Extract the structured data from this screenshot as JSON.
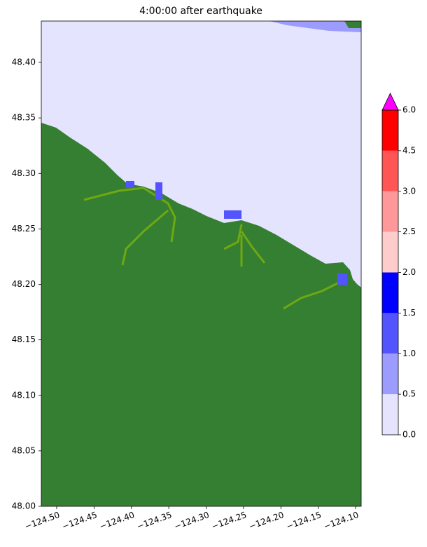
{
  "chart_data": {
    "type": "map",
    "title": "4:00:00 after earthquake",
    "xlim": [
      -124.5206,
      -124.0925
    ],
    "ylim": [
      48.0,
      48.4373
    ],
    "xticks": [
      {
        "value": -124.5,
        "label": "−124.50"
      },
      {
        "value": -124.45,
        "label": "−124.45"
      },
      {
        "value": -124.4,
        "label": "−124.40"
      },
      {
        "value": -124.35,
        "label": "−124.35"
      },
      {
        "value": -124.3,
        "label": "−124.30"
      },
      {
        "value": -124.25,
        "label": "−124.25"
      },
      {
        "value": -124.2,
        "label": "−124.20"
      },
      {
        "value": -124.15,
        "label": "−124.15"
      },
      {
        "value": -124.1,
        "label": "−124.10"
      }
    ],
    "yticks": [
      {
        "value": 48.0,
        "label": "48.00"
      },
      48.05,
      {
        "value": 48.1,
        "label": "48.10"
      },
      48.15,
      {
        "value": 48.2,
        "label": "48.20"
      },
      48.25,
      {
        "value": 48.3,
        "label": "48.30"
      },
      48.35,
      {
        "value": 48.4,
        "label": "48.40"
      }
    ],
    "colorbar": {
      "levels": [
        {
          "value": 0,
          "label": "0.0"
        },
        0.5,
        {
          "value": 1,
          "label": "1.0"
        },
        1.5,
        {
          "value": 2,
          "label": "2.0"
        },
        2.5,
        {
          "value": 3,
          "label": "3.0"
        },
        4.5,
        {
          "value": 6,
          "label": "6.0"
        }
      ],
      "colors": [
        "#e4e4ff",
        "#9c9cff",
        "#5454ff",
        "#0000ff",
        "#ffcccc",
        "#ff9999",
        "#ff5555",
        "#ff0000"
      ],
      "extend_color": "#ff00ff"
    }
  }
}
